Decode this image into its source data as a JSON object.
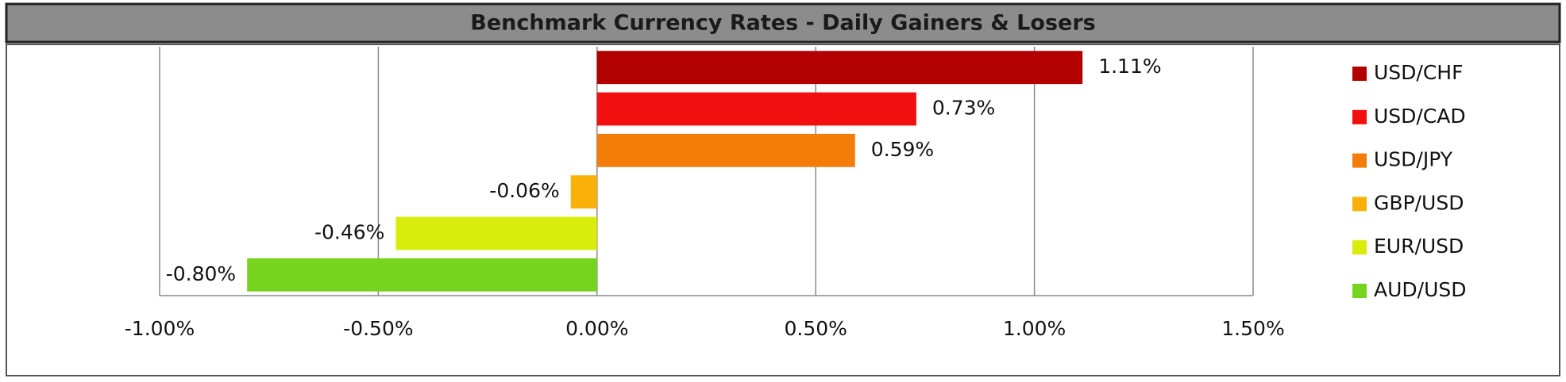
{
  "chart_data": {
    "type": "hbar",
    "title": "Benchmark Currency Rates - Daily Gainers & Losers",
    "categories": [
      "USD/CHF",
      "USD/CAD",
      "USD/JPY",
      "GBP/USD",
      "EUR/USD",
      "AUD/USD"
    ],
    "values": [
      1.11,
      0.73,
      0.59,
      -0.06,
      -0.46,
      -0.8
    ],
    "value_labels": [
      "1.11%",
      "0.73%",
      "0.59%",
      "-0.06%",
      "-0.46%",
      "-0.80%"
    ],
    "colors": [
      "#b30000",
      "#f20f0f",
      "#f47d0a",
      "#f9b10a",
      "#d8ed0c",
      "#77d41e"
    ],
    "xlim": [
      -1.0,
      1.5
    ],
    "xticks": [
      {
        "value": -1.0,
        "label": "-1.00%"
      },
      {
        "value": -0.5,
        "label": "-0.50%"
      },
      {
        "value": 0.0,
        "label": "0.00%"
      },
      {
        "value": 0.5,
        "label": "0.50%"
      },
      {
        "value": 1.0,
        "label": "1.00%"
      },
      {
        "value": 1.5,
        "label": "1.50%"
      }
    ],
    "grid": true,
    "legend": "right"
  }
}
